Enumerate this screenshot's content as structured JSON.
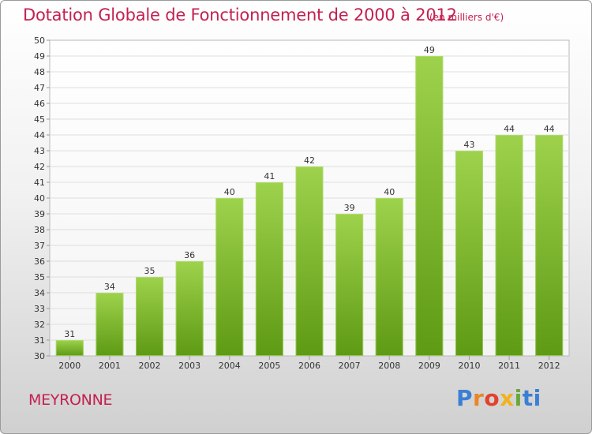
{
  "header": {
    "title": "Dotation Globale de Fonctionnement de 2000 à 2012",
    "unit": "(en milliers d'€)"
  },
  "footer": {
    "commune": "MEYRONNE",
    "logo_text": "Proxiti"
  },
  "colors": {
    "title": "#c4204f",
    "bar_light": "#9ed24c",
    "bar_dark": "#5e9a14"
  },
  "chart_data": {
    "type": "bar",
    "title": "Dotation Globale de Fonctionnement de 2000 à 2012",
    "subtitle": "(en milliers d'€)",
    "categories": [
      "2000",
      "2001",
      "2002",
      "2003",
      "2004",
      "2005",
      "2006",
      "2007",
      "2008",
      "2009",
      "2010",
      "2011",
      "2012"
    ],
    "values": [
      31,
      34,
      35,
      36,
      40,
      41,
      42,
      39,
      40,
      49,
      43,
      44,
      44
    ],
    "ylim": [
      30,
      50
    ],
    "yticks": [
      30,
      31,
      32,
      33,
      34,
      35,
      36,
      37,
      38,
      39,
      40,
      41,
      42,
      43,
      44,
      45,
      46,
      47,
      48,
      49,
      50
    ],
    "grid": true,
    "data_labels": true,
    "legend": "none"
  }
}
